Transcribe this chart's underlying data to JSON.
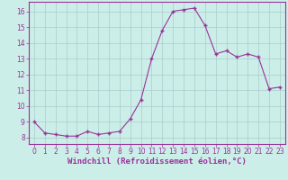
{
  "x": [
    0,
    1,
    2,
    3,
    4,
    5,
    6,
    7,
    8,
    9,
    10,
    11,
    12,
    13,
    14,
    15,
    16,
    17,
    18,
    19,
    20,
    21,
    22,
    23
  ],
  "y": [
    9.0,
    8.3,
    8.2,
    8.1,
    8.1,
    8.4,
    8.2,
    8.3,
    8.4,
    9.2,
    10.4,
    13.0,
    14.8,
    16.0,
    16.1,
    16.2,
    15.1,
    13.3,
    13.5,
    13.1,
    13.3,
    13.1,
    11.1,
    11.2
  ],
  "line_color": "#993399",
  "marker": "+",
  "marker_size": 3.5,
  "bg_color": "#cceee8",
  "grid_color": "#aacccc",
  "xlabel": "Windchill (Refroidissement éolien,°C)",
  "xlim": [
    -0.5,
    23.5
  ],
  "ylim": [
    7.6,
    16.6
  ],
  "yticks": [
    8,
    9,
    10,
    11,
    12,
    13,
    14,
    15,
    16
  ],
  "xticks": [
    0,
    1,
    2,
    3,
    4,
    5,
    6,
    7,
    8,
    9,
    10,
    11,
    12,
    13,
    14,
    15,
    16,
    17,
    18,
    19,
    20,
    21,
    22,
    23
  ],
  "tick_fontsize": 5.5,
  "xlabel_fontsize": 6.5,
  "label_color": "#993399",
  "tick_color": "#993399",
  "spine_color": "#993399"
}
